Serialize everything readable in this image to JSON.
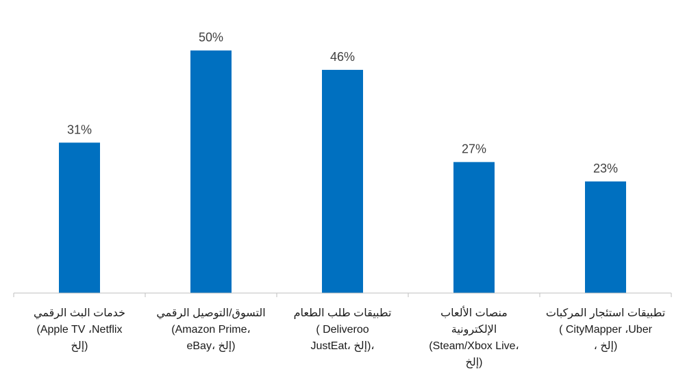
{
  "chart_data": {
    "type": "bar",
    "categories": [
      [
        "خدمات البث الرقمي",
        "(Apple TV ،Netflix",
        "إلخ)"
      ],
      [
        "التسوق/التوصيل الرقمي",
        "(Amazon Prime،",
        "eBay، إلخ)"
      ],
      [
        "تطبيقات طلب الطعام",
        "( Deliveroo",
        "JustEat، إلخ)،"
      ],
      [
        "منصات الألعاب",
        "الإلكترونية",
        "(Steam/Xbox Live،",
        "إلخ)"
      ],
      [
        "تطبيقات استئجار المركبات",
        "( CityMapper ،Uber",
        "، إلخ)"
      ]
    ],
    "values": [
      31,
      50,
      46,
      27,
      23
    ],
    "value_labels": [
      "31%",
      "50%",
      "46%",
      "27%",
      "23%"
    ],
    "ylim": [
      0,
      58
    ],
    "bar_color": "#0070c0",
    "axis_color": "#bfbfbf",
    "grid": false
  }
}
